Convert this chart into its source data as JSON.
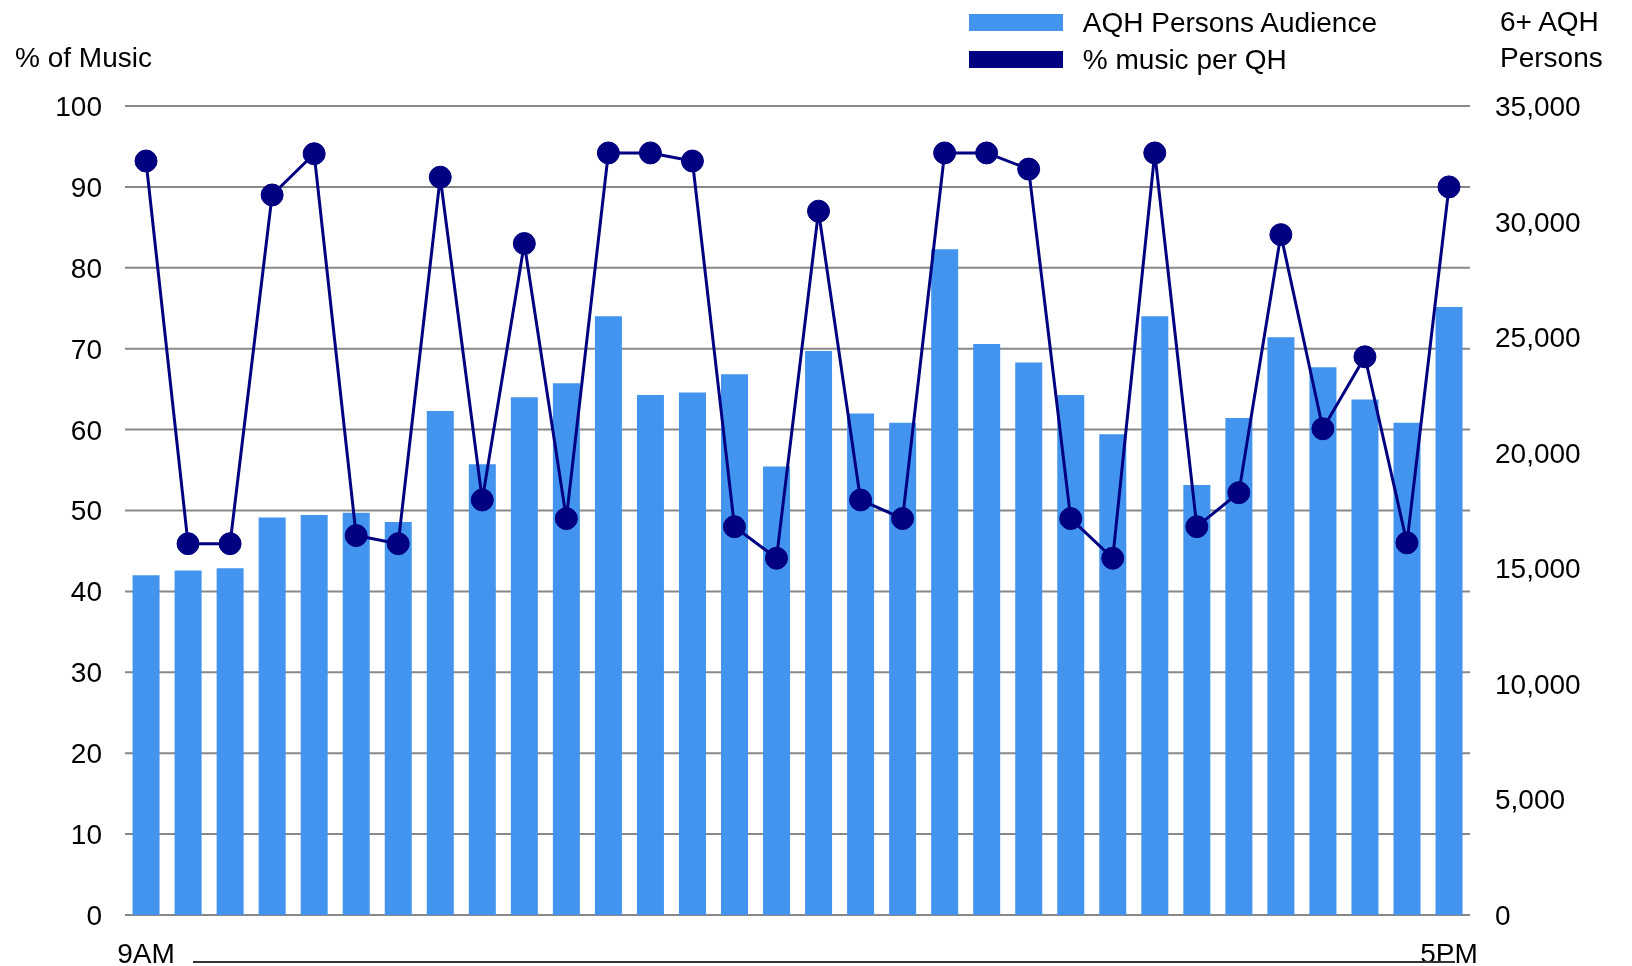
{
  "chart_data": {
    "type": "bar",
    "ylabel": "% of Music",
    "y2label": "6+ AQH Persons",
    "categories": [
      "9AM",
      null,
      null,
      null,
      null,
      null,
      null,
      null,
      null,
      null,
      null,
      null,
      null,
      null,
      null,
      null,
      null,
      null,
      null,
      null,
      null,
      null,
      null,
      null,
      null,
      null,
      null,
      null,
      null,
      null,
      null,
      "5PM"
    ],
    "series": [
      {
        "name": "AQH Persons Audience",
        "axis": "y2",
        "color": "#4394ee",
        "values": [
          14700,
          14900,
          15000,
          17200,
          17300,
          17400,
          17000,
          21800,
          19500,
          22400,
          23000,
          25900,
          22500,
          22600,
          23400,
          19400,
          24400,
          21700,
          21300,
          28800,
          24700,
          23900,
          22500,
          20800,
          25900,
          18600,
          21500,
          25000,
          23700,
          22300,
          21300,
          26300
        ]
      },
      {
        "name": "% music per QH",
        "type": "line",
        "color": "#000080",
        "values": [
          93.2,
          45.9,
          45.9,
          89.0,
          94.1,
          46.9,
          45.9,
          91.2,
          51.3,
          83.0,
          49.0,
          94.2,
          94.2,
          93.2,
          48.0,
          44.1,
          87.0,
          51.3,
          49.0,
          94.2,
          94.2,
          92.2,
          49.0,
          44.1,
          94.2,
          48.0,
          52.2,
          84.1,
          60.1,
          69.0,
          46.0,
          90.0
        ]
      }
    ],
    "ylim": [
      0,
      100
    ],
    "yticks": [
      0,
      10,
      20,
      30,
      40,
      50,
      60,
      70,
      80,
      90,
      100
    ],
    "y2lim": [
      0,
      35000
    ],
    "y2ticks": [
      0,
      {
        "value": 5000,
        "label": "5,000"
      },
      {
        "value": 10000,
        "label": "10,000"
      },
      {
        "value": 15000,
        "label": "15,000"
      },
      {
        "value": 20000,
        "label": "20,000"
      },
      {
        "value": 25000,
        "label": "25,000"
      },
      {
        "value": 30000,
        "label": "30,000"
      },
      {
        "value": 35000,
        "label": "35,000"
      }
    ],
    "grid": "y",
    "legend": "top right",
    "marker": "circle"
  }
}
